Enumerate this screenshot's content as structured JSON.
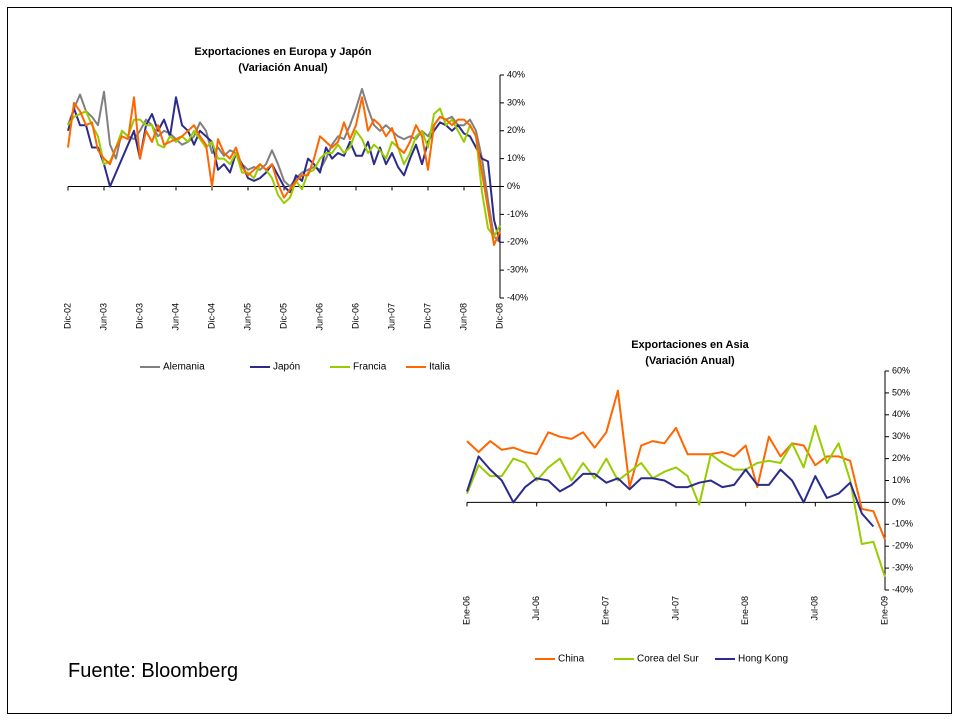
{
  "source": "Fuente: Bloomberg",
  "chart_data": [
    {
      "type": "line",
      "title": "Exportaciones en  Europa y Japón",
      "subtitle": "(Variación Anual)",
      "categories": [
        "Dic-02",
        null,
        null,
        null,
        null,
        null,
        "Jun-03",
        null,
        null,
        null,
        null,
        null,
        "Dic-03",
        null,
        null,
        null,
        null,
        null,
        "Jun-04",
        null,
        null,
        null,
        null,
        null,
        "Dic-04",
        null,
        null,
        null,
        null,
        null,
        "Jun-05",
        null,
        null,
        null,
        null,
        null,
        "Dic-05",
        null,
        null,
        null,
        null,
        null,
        "Jun-06",
        null,
        null,
        null,
        null,
        null,
        "Dic-06",
        null,
        null,
        null,
        null,
        null,
        "Jun-07",
        null,
        null,
        null,
        null,
        null,
        "Dic-07",
        null,
        null,
        null,
        null,
        null,
        "Jun-08",
        null,
        null,
        null,
        null,
        null,
        "Dic-08"
      ],
      "ylim": [
        -40,
        40
      ],
      "yticks": [
        {
          "value": -40,
          "label": "-40%"
        },
        {
          "value": -30,
          "label": "-30%"
        },
        {
          "value": -20,
          "label": "-20%"
        },
        {
          "value": -10,
          "label": "-10%"
        },
        {
          "value": 0,
          "label": "0%"
        },
        {
          "value": 10,
          "label": "10%"
        },
        {
          "value": 20,
          "label": "20%"
        },
        {
          "value": 30,
          "label": "30%"
        },
        {
          "value": 40,
          "label": "40%"
        }
      ],
      "series": [
        {
          "name": "Alemania",
          "color": "#808080",
          "values": [
            22,
            28,
            33,
            27,
            25,
            22,
            34,
            15,
            10,
            20,
            18,
            17,
            20,
            24,
            22,
            18,
            20,
            19,
            17,
            15,
            16,
            18,
            23,
            20,
            12,
            14,
            11,
            13,
            12,
            8,
            6,
            7,
            6,
            8,
            13,
            8,
            2,
            0,
            3,
            5,
            6,
            7,
            6,
            10,
            15,
            18,
            17,
            22,
            28,
            35,
            28,
            22,
            20,
            22,
            20,
            18,
            17,
            18,
            17,
            20,
            18,
            22,
            25,
            24,
            25,
            22,
            22,
            24,
            20,
            10,
            -5,
            -18,
            -20
          ]
        },
        {
          "name": "Japón",
          "color": "#2b2b8c",
          "values": [
            20,
            28,
            22,
            22,
            14,
            14,
            8,
            0,
            5,
            10,
            15,
            20,
            10,
            22,
            26,
            20,
            24,
            18,
            32,
            22,
            20,
            15,
            20,
            18,
            16,
            6,
            8,
            5,
            12,
            8,
            3,
            2,
            3,
            5,
            8,
            4,
            0,
            -2,
            4,
            2,
            10,
            8,
            5,
            14,
            10,
            12,
            11,
            16,
            11,
            11,
            16,
            8,
            14,
            8,
            12,
            7,
            4,
            10,
            15,
            8,
            16,
            20,
            23,
            22,
            20,
            22,
            19,
            18,
            14,
            10,
            9,
            -12,
            -20
          ]
        },
        {
          "name": "Francia",
          "color": "#99cc00",
          "values": [
            22,
            25,
            26,
            27,
            22,
            18,
            8,
            9,
            14,
            20,
            18,
            24,
            24,
            22,
            22,
            15,
            14,
            18,
            16,
            18,
            16,
            20,
            17,
            14,
            16,
            10,
            10,
            8,
            12,
            5,
            5,
            3,
            8,
            6,
            3,
            -3,
            -6,
            -4,
            2,
            -1,
            5,
            6,
            10,
            12,
            12,
            15,
            12,
            14,
            20,
            17,
            12,
            15,
            13,
            10,
            16,
            14,
            8,
            12,
            18,
            20,
            14,
            26,
            28,
            22,
            24,
            20,
            16,
            22,
            18,
            -2,
            -15,
            -18,
            -14
          ]
        },
        {
          "name": "Italia",
          "color": "#ff6600",
          "values": [
            14,
            30,
            27,
            22,
            23,
            13,
            10,
            8,
            14,
            18,
            17,
            32,
            10,
            20,
            16,
            22,
            15,
            16,
            17,
            18,
            20,
            22,
            18,
            15,
            0,
            17,
            12,
            10,
            14,
            7,
            4,
            6,
            8,
            6,
            8,
            1,
            -4,
            -1,
            2,
            4,
            4,
            10,
            18,
            16,
            14,
            16,
            23,
            17,
            22,
            32,
            20,
            24,
            22,
            18,
            21,
            14,
            12,
            16,
            22,
            18,
            6,
            22,
            25,
            24,
            22,
            24,
            24,
            22,
            18,
            5,
            -8,
            -21,
            -16
          ]
        }
      ]
    },
    {
      "type": "line",
      "title": "Exportaciones en  Asia",
      "subtitle": "(Variación Anual)",
      "categories": [
        "Ene-06",
        null,
        null,
        null,
        null,
        null,
        "Jul-06",
        null,
        null,
        null,
        null,
        null,
        "Ene-07",
        null,
        null,
        null,
        null,
        null,
        "Jul-07",
        null,
        null,
        null,
        null,
        null,
        "Ene-08",
        null,
        null,
        null,
        null,
        null,
        "Jul-08",
        null,
        null,
        null,
        null,
        null,
        "Ene-09"
      ],
      "ylim": [
        -40,
        60
      ],
      "yticks": [
        {
          "value": -40,
          "label": "-40%"
        },
        {
          "value": -30,
          "label": "-30%"
        },
        {
          "value": -20,
          "label": "-20%"
        },
        {
          "value": -10,
          "label": "-10%"
        },
        {
          "value": 0,
          "label": "0%"
        },
        {
          "value": 10,
          "label": "10%"
        },
        {
          "value": 20,
          "label": "20%"
        },
        {
          "value": 30,
          "label": "30%"
        },
        {
          "value": 40,
          "label": "40%"
        },
        {
          "value": 50,
          "label": "50%"
        },
        {
          "value": 60,
          "label": "60%"
        }
      ],
      "series": [
        {
          "name": "China",
          "color": "#ff6600",
          "values": [
            28,
            23,
            28,
            24,
            25,
            23,
            22,
            32,
            30,
            29,
            32,
            25,
            32,
            51,
            7,
            26,
            28,
            27,
            34,
            22,
            22,
            22,
            23,
            21,
            26,
            7,
            30,
            21,
            27,
            26,
            17,
            21,
            21,
            19,
            -3,
            -4,
            -17
          ]
        },
        {
          "name": "Corea del Sur",
          "color": "#99cc00",
          "values": [
            4,
            17,
            12,
            12,
            20,
            18,
            10,
            16,
            20,
            10,
            18,
            11,
            20,
            10,
            14,
            18,
            11,
            14,
            16,
            12,
            -1,
            22,
            18,
            15,
            15,
            18,
            19,
            18,
            27,
            16,
            35,
            18,
            27,
            10,
            -19,
            -18,
            -34
          ]
        },
        {
          "name": "Hong Kong",
          "color": "#2b2b8c",
          "values": [
            5,
            21,
            15,
            10,
            0,
            7,
            11,
            10,
            5,
            8,
            13,
            13,
            9,
            11,
            6,
            11,
            11,
            10,
            7,
            7,
            9,
            10,
            7,
            8,
            15,
            8,
            8,
            15,
            10,
            0,
            12,
            2,
            4,
            9,
            -5,
            -11,
            null
          ]
        }
      ]
    }
  ]
}
